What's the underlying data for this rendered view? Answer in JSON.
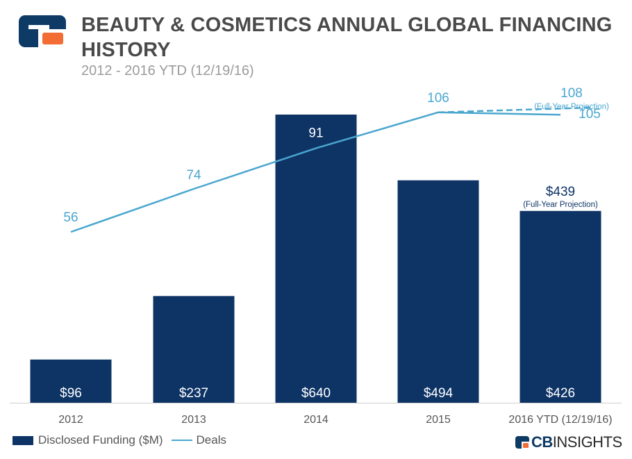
{
  "header": {
    "title": "BEAUTY & COSMETICS ANNUAL GLOBAL FINANCING HISTORY",
    "subtitle": "2012 - 2016 YTD (12/19/16)"
  },
  "legend": {
    "bar_label": "Disclosed Funding ($M)",
    "line_label": "Deals"
  },
  "brand": {
    "cb": "CB",
    "insights": "INSIGHTS"
  },
  "colors": {
    "bar": "#0e3466",
    "line": "#4aa6cf",
    "title": "#4a4a4a",
    "subtitle": "#9b9b9b",
    "axis": "#555555",
    "logo_dark": "#0e3a66",
    "logo_orange": "#f26c33"
  },
  "chart_data": {
    "type": "bar+line",
    "title": "BEAUTY & COSMETICS ANNUAL GLOBAL FINANCING HISTORY",
    "subtitle": "2012 - 2016 YTD (12/19/16)",
    "categories": [
      "2012",
      "2013",
      "2014",
      "2015",
      "2016 YTD (12/19/16)"
    ],
    "series": [
      {
        "name": "Disclosed Funding ($M)",
        "kind": "bar",
        "values": [
          96,
          237,
          640,
          494,
          426
        ],
        "labels": [
          "$96",
          "$237",
          "$640",
          "$494",
          "$426"
        ]
      },
      {
        "name": "Deals",
        "kind": "line",
        "values": [
          56,
          74,
          91,
          106,
          105
        ],
        "labels": [
          "56",
          "74",
          "91",
          "106",
          "105"
        ]
      }
    ],
    "projections": {
      "funding": {
        "value": 439,
        "label": "$439",
        "note": "(Full-Year Projection)"
      },
      "deals": {
        "value": 108,
        "label": "108",
        "note": "(Full-Year Projection)"
      }
    },
    "bar_ylim": [
      0,
      640
    ],
    "line_ylim": [
      20,
      110
    ],
    "grid": false,
    "legend_position": "bottom-left"
  }
}
